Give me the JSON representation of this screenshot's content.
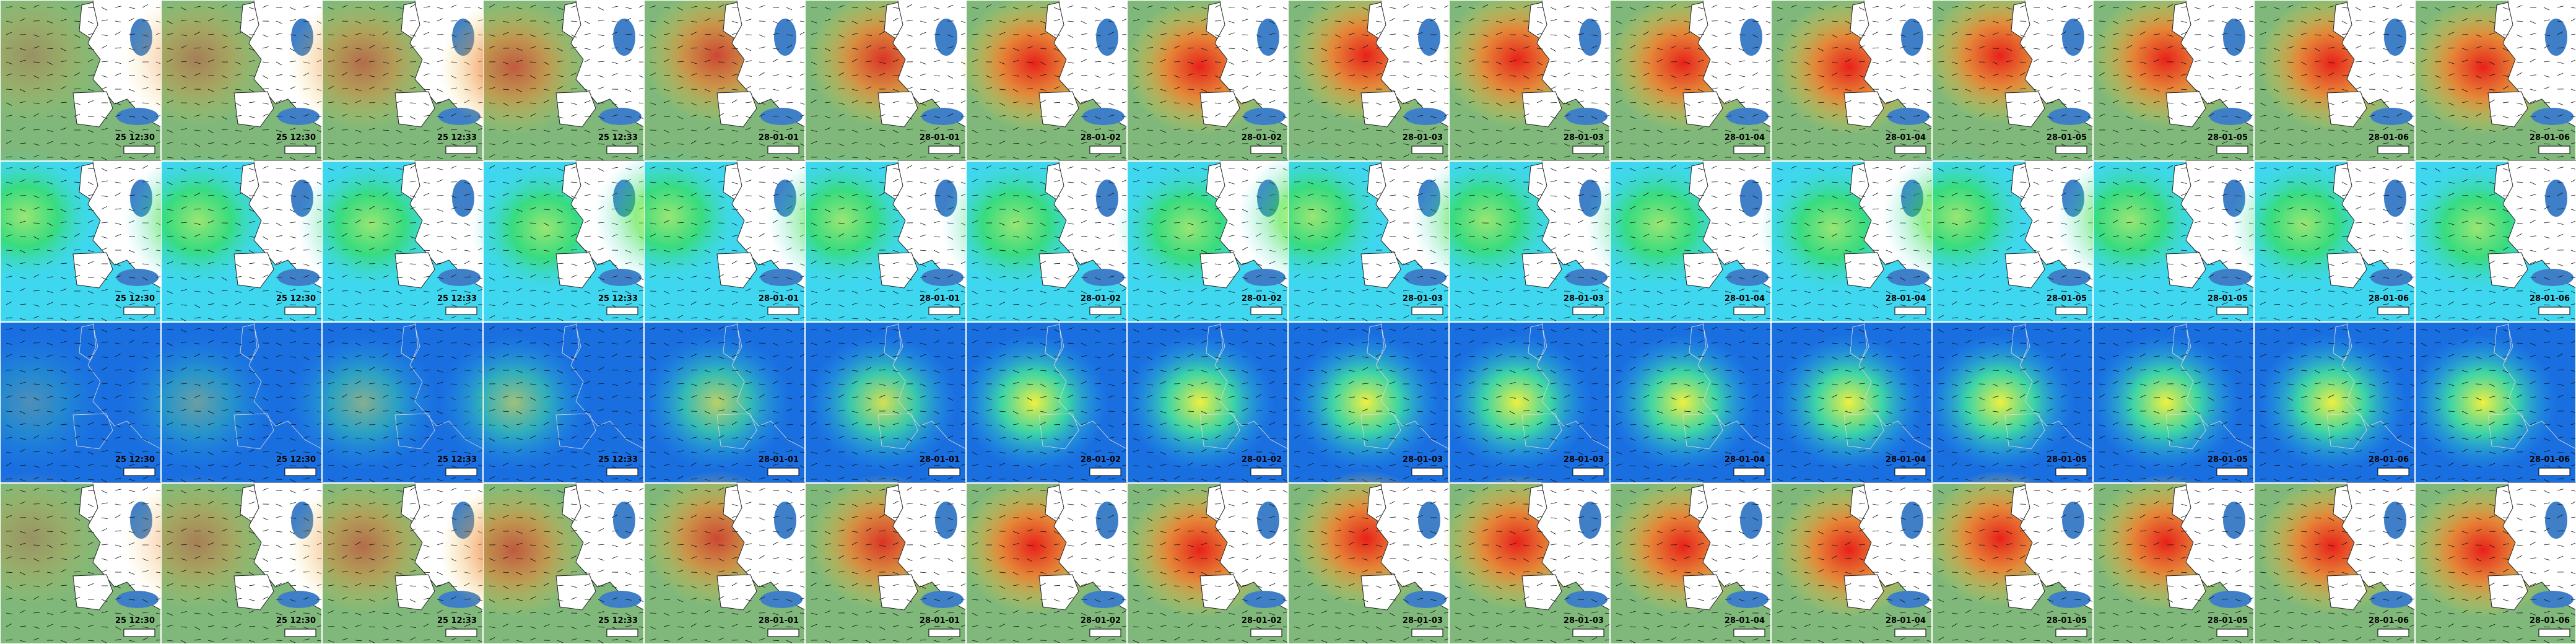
{
  "rows": [
    {
      "labels": [
        "25 12:30",
        "25 12:30",
        "25 12:33",
        "25 12:33",
        "28-01-01",
        "28-01-01",
        "28-01-02",
        "28-01-02",
        "28-01-03",
        "28-01-03",
        "28-01-04",
        "28-01-04",
        "28-01-05",
        "28-01-05",
        "28-01-06",
        "28-01-06"
      ]
    },
    {
      "labels": [
        "25 12:30",
        "25 12:30",
        "25 12:33",
        "25 12:33",
        "28-01-01",
        "28-01-01",
        "28-01-02",
        "28-01-02",
        "28-01-03",
        "28-01-03",
        "28-01-04",
        "28-01-04",
        "28-01-05",
        "28-01-05",
        "28-01-06",
        "28-01-06"
      ]
    },
    {
      "labels": [
        "25 12:30",
        "25 12:30",
        "25 12:33",
        "25 12:33",
        "28-01-01",
        "28-01-01",
        "28-01-02",
        "28-01-02",
        "28-01-03",
        "28-01-03",
        "28-01-04",
        "28-01-04",
        "28-01-05",
        "28-01-05",
        "28-01-06",
        "28-01-06"
      ]
    },
    {
      "labels": [
        "25 12:30",
        "25 12:30",
        "25 12:33",
        "25 12:33",
        "28-01-01",
        "28-01-01",
        "28-01-02",
        "28-01-02",
        "28-01-03",
        "28-01-03",
        "28-01-04",
        "28-01-04",
        "28-01-05",
        "28-01-05",
        "28-01-06",
        "28-01-06"
      ]
    }
  ]
}
